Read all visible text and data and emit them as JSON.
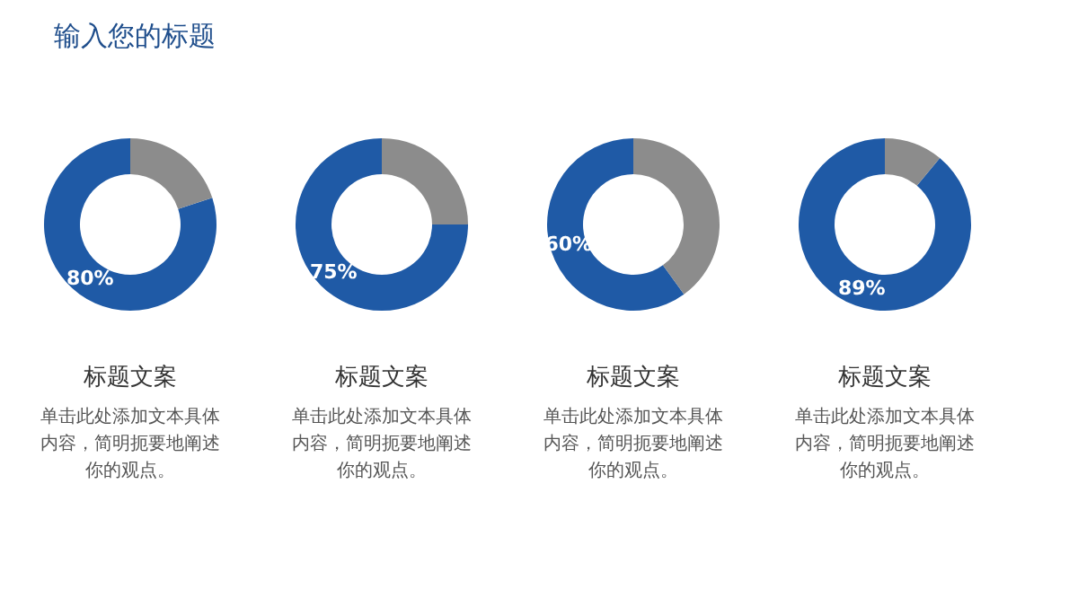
{
  "chart_data": [
    {
      "type": "other",
      "title": "输入您的标题"
    },
    {
      "type": "donut",
      "title": "标题文案",
      "categories": [
        null,
        null
      ],
      "values": [
        80,
        20
      ],
      "colors": [
        "#1f5aa6",
        "#8c8c8c"
      ],
      "value_labels": [
        "80%",
        null
      ],
      "annotations": [
        "单击此处添加文本具体内容，简明扼要地阐述你的观点。"
      ]
    },
    {
      "type": "donut",
      "title": "标题文案",
      "categories": [
        null,
        null
      ],
      "values": [
        75,
        25
      ],
      "colors": [
        "#1f5aa6",
        "#8c8c8c"
      ],
      "value_labels": [
        "75%",
        null
      ],
      "annotations": [
        "单击此处添加文本具体内容，简明扼要地阐述你的观点。"
      ]
    },
    {
      "type": "donut",
      "title": "标题文案",
      "categories": [
        null,
        null
      ],
      "values": [
        60,
        40
      ],
      "colors": [
        "#1f5aa6",
        "#8c8c8c"
      ],
      "value_labels": [
        "60%",
        null
      ],
      "annotations": [
        "单击此处添加文本具体内容，简明扼要地阐述你的观点。"
      ]
    },
    {
      "type": "donut",
      "title": "标题文案",
      "categories": [
        null,
        null
      ],
      "values": [
        89,
        11
      ],
      "colors": [
        "#1f5aa6",
        "#8c8c8c"
      ],
      "value_labels": [
        "89%",
        null
      ],
      "annotations": [
        "单击此处添加文本具体内容，简明扼要地阐述你的观点。"
      ]
    }
  ]
}
